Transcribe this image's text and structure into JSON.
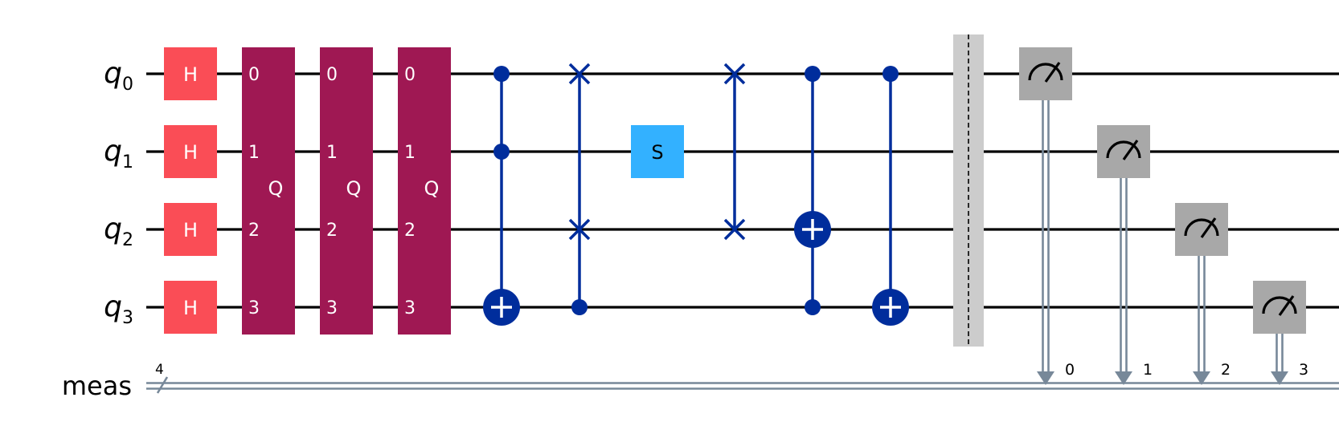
{
  "qubits": [
    {
      "name": "q",
      "index": "0"
    },
    {
      "name": "q",
      "index": "1"
    },
    {
      "name": "q",
      "index": "2"
    },
    {
      "name": "q",
      "index": "3"
    }
  ],
  "classical": {
    "label": "meas",
    "width": "4",
    "bits": [
      "0",
      "1",
      "2",
      "3"
    ]
  },
  "h_gates": [
    {
      "label": "H",
      "qubit": 0
    },
    {
      "label": "H",
      "qubit": 1
    },
    {
      "label": "H",
      "qubit": 2
    },
    {
      "label": "H",
      "qubit": 3
    }
  ],
  "q_blocks": [
    {
      "label": "Q",
      "wire_labels": [
        "0",
        "1",
        "2",
        "3"
      ]
    },
    {
      "label": "Q",
      "wire_labels": [
        "0",
        "1",
        "2",
        "3"
      ]
    },
    {
      "label": "Q",
      "wire_labels": [
        "0",
        "1",
        "2",
        "3"
      ]
    }
  ],
  "operations": [
    {
      "type": "ccx",
      "controls": [
        0,
        1
      ],
      "target": 3
    },
    {
      "type": "cswap",
      "control": 3,
      "targets": [
        0,
        2
      ]
    },
    {
      "type": "s",
      "label": "S",
      "qubit": 1
    },
    {
      "type": "swap",
      "targets": [
        0,
        2
      ]
    },
    {
      "type": "ccx",
      "controls": [
        0,
        3
      ],
      "target": 2
    },
    {
      "type": "cx",
      "controls": [
        0
      ],
      "target": 3
    }
  ],
  "barrier": {
    "qubits": [
      0,
      1,
      2,
      3
    ]
  },
  "measurements": [
    {
      "qubit": 0,
      "bit": "0"
    },
    {
      "qubit": 1,
      "bit": "1"
    },
    {
      "qubit": 2,
      "bit": "2"
    },
    {
      "qubit": 3,
      "bit": "3"
    }
  ],
  "colors": {
    "wire": "#000000",
    "classical_wire": "#778899",
    "h_gate": "#fa4d56",
    "q_block": "#9f1853",
    "s_gate": "#33b1ff",
    "control": "#002d9c",
    "measure": "#a8a8a8",
    "barrier": "#cccccc"
  }
}
